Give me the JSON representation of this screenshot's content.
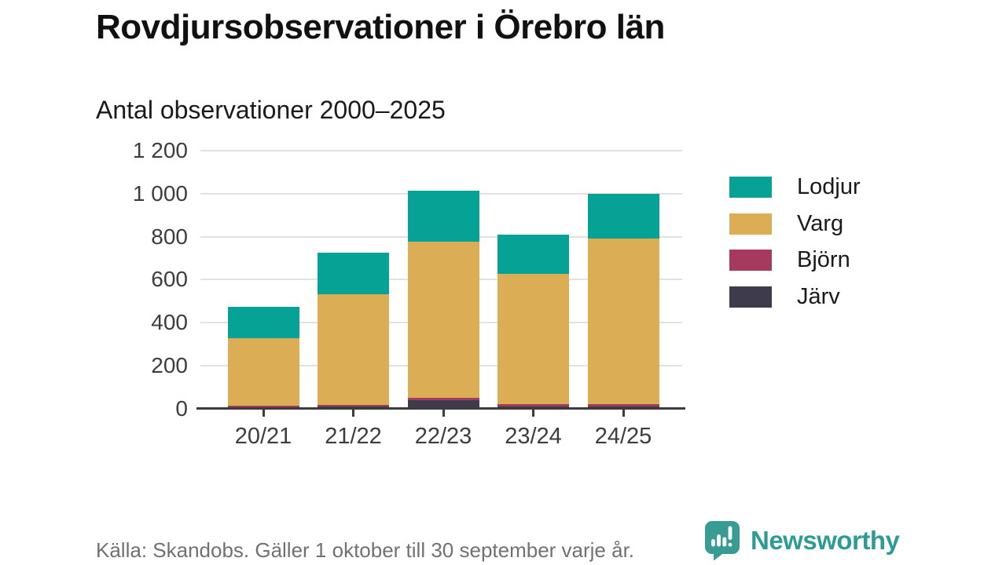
{
  "title": "Rovdjursobservationer i Örebro län",
  "subtitle": "Antal observationer 2000–2025",
  "footer": {
    "source": "Källa: Skandobs. Gäller 1 oktober till 30 september varje år.",
    "brand": "Newsworthy",
    "logo_icon": "speech-bubble-bar-chart-icon"
  },
  "colors": {
    "background": "#ffffff",
    "title_text": "#111111",
    "axis_text": "#3d3d3d",
    "gridline": "#e1e1e1",
    "axis_line": "#3b3b3b",
    "source_text": "#717171",
    "brand_teal": "#2e9c95"
  },
  "chart_data": {
    "type": "bar",
    "stacked": true,
    "title": "Rovdjursobservationer i Örebro län",
    "subtitle": "Antal observationer 2000–2025",
    "categories": [
      "20/21",
      "21/22",
      "22/23",
      "23/24",
      "24/25"
    ],
    "series": [
      {
        "name": "Lodjur",
        "color": "#06a295",
        "values": [
          145,
          192,
          237,
          182,
          208
        ]
      },
      {
        "name": "Varg",
        "color": "#dbad55",
        "values": [
          315,
          515,
          730,
          608,
          770
        ]
      },
      {
        "name": "Björn",
        "color": "#a53a5e",
        "values": [
          8,
          10,
          10,
          10,
          10
        ]
      },
      {
        "name": "Järv",
        "color": "#3d3b4c",
        "values": [
          5,
          8,
          38,
          10,
          10
        ]
      }
    ],
    "totals": [
      473,
      725,
      1015,
      810,
      998
    ],
    "xlabel": "",
    "ylabel": "",
    "ylim": [
      0,
      1200
    ],
    "yticks": [
      0,
      200,
      400,
      600,
      800,
      1000,
      1200
    ],
    "ytick_labels": [
      "0",
      "200",
      "400",
      "600",
      "800",
      "1 000",
      "1 200"
    ],
    "grid": true,
    "legend_position": "right",
    "stack_order_bottom_to_top": [
      "Järv",
      "Björn",
      "Varg",
      "Lodjur"
    ]
  }
}
